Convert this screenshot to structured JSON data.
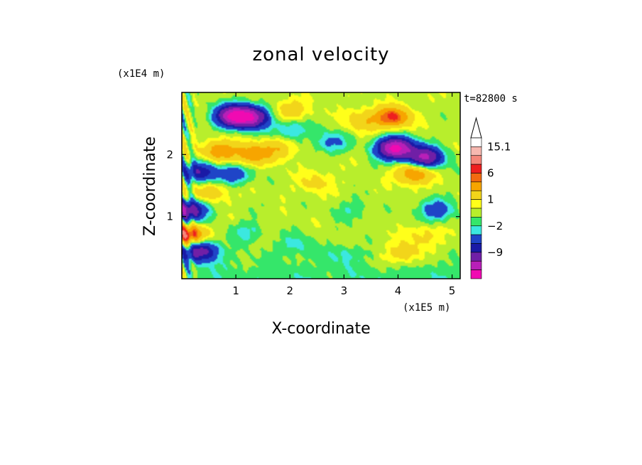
{
  "chart_data": {
    "type": "heatmap",
    "title": "zonal velocity",
    "xlabel": "X-coordinate",
    "ylabel": "Z-coordinate",
    "x_unit": "(x1E5 m)",
    "y_unit": "(x1E4 m)",
    "time_label": "t=82800 s",
    "xlim": [
      0.0,
      5.15
    ],
    "ylim": [
      0.0,
      3.0
    ],
    "x_ticks": [
      1,
      2,
      3,
      4,
      5
    ],
    "y_ticks": [
      1,
      2
    ],
    "x_tick_labels": [
      "1",
      "2",
      "3",
      "4",
      "5"
    ],
    "y_tick_labels": [
      "1",
      "2"
    ],
    "colorbar": {
      "levels_top_to_bottom": [
        "#ffffff",
        "#f7b8b0",
        "#f4867a",
        "#ee1f1f",
        "#f26a10",
        "#f7a500",
        "#f2d51a",
        "#ffff1a",
        "#b8ee2c",
        "#35e66a",
        "#3be8e0",
        "#1f45c7",
        "#1a1aa6",
        "#701fa6",
        "#b81fb8",
        "#f00ab2"
      ],
      "labels": [
        {
          "value": "15.1",
          "level": 1
        },
        {
          "value": "6",
          "level": 4
        },
        {
          "value": "1",
          "level": 7
        },
        {
          "value": "−2",
          "level": 10
        },
        {
          "value": "−9",
          "level": 13
        }
      ],
      "extend_top": "triangle"
    },
    "features": [
      {
        "x": 0.95,
        "z": 2.62,
        "value": -12
      },
      {
        "x": 1.3,
        "z": 2.6,
        "value": -10
      },
      {
        "x": 0.35,
        "z": 1.72,
        "value": -6
      },
      {
        "x": 0.95,
        "z": 1.68,
        "value": -4
      },
      {
        "x": 0.12,
        "z": 1.1,
        "value": -9
      },
      {
        "x": 0.35,
        "z": 0.45,
        "value": -8
      },
      {
        "x": 2.0,
        "z": 2.4,
        "value": -3
      },
      {
        "x": 3.95,
        "z": 2.1,
        "value": -14
      },
      {
        "x": 4.5,
        "z": 1.95,
        "value": -10
      },
      {
        "x": 2.75,
        "z": 2.2,
        "value": -3
      },
      {
        "x": 4.7,
        "z": 1.1,
        "value": -4
      },
      {
        "x": 0.7,
        "z": 2.05,
        "value": 5
      },
      {
        "x": 1.3,
        "z": 2.0,
        "value": 5
      },
      {
        "x": 1.8,
        "z": 2.1,
        "value": 3
      },
      {
        "x": 2.0,
        "z": 2.7,
        "value": 3
      },
      {
        "x": 3.35,
        "z": 2.55,
        "value": 3
      },
      {
        "x": 3.9,
        "z": 2.6,
        "value": 7
      },
      {
        "x": 4.3,
        "z": 1.7,
        "value": 6
      },
      {
        "x": 0.12,
        "z": 0.7,
        "value": 8
      },
      {
        "x": 0.55,
        "z": 1.4,
        "value": 3
      },
      {
        "x": 2.5,
        "z": 1.55,
        "value": 2
      },
      {
        "x": 3.15,
        "z": 1.1,
        "value": -1.5
      },
      {
        "x": 2.1,
        "z": 0.55,
        "value": -2
      },
      {
        "x": 1.2,
        "z": 0.75,
        "value": -2
      },
      {
        "x": 3.0,
        "z": 0.4,
        "value": -1.5
      },
      {
        "x": 4.1,
        "z": 0.4,
        "value": 3
      },
      {
        "x": 4.5,
        "z": 0.7,
        "value": 2
      }
    ]
  }
}
